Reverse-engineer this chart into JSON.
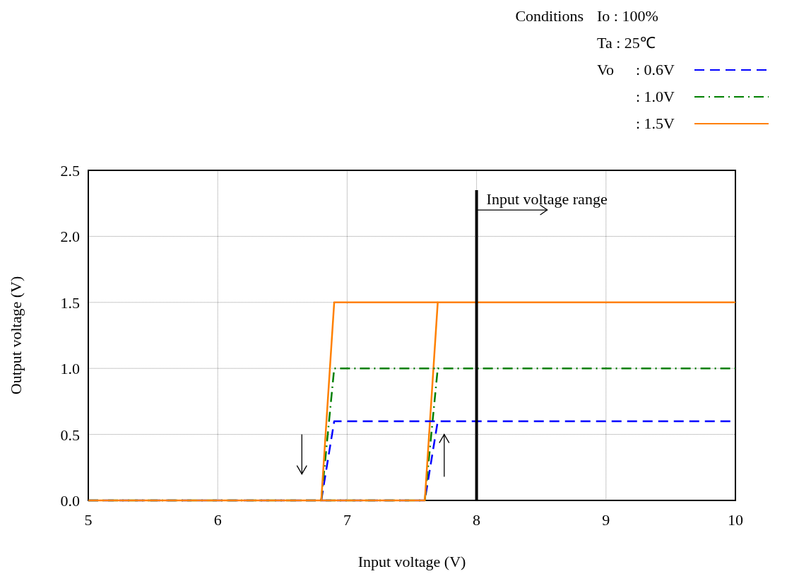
{
  "chart_data": {
    "type": "line",
    "xlabel": "Input voltage (V)",
    "ylabel": "Output voltage (V)",
    "legend_title": "Conditions",
    "xlim": [
      5,
      10
    ],
    "xticks": [
      5,
      6,
      7,
      8,
      9,
      10
    ],
    "ylim": [
      0,
      2.5
    ],
    "yticks": [
      {
        "value": 0,
        "label": "0.0"
      },
      {
        "value": 0.5,
        "label": "0.5"
      },
      {
        "value": 1,
        "label": "1.0"
      },
      {
        "value": 1.5,
        "label": "1.5"
      },
      {
        "value": 2,
        "label": "2.0"
      },
      {
        "value": 2.5,
        "label": "2.5"
      }
    ],
    "grid": true,
    "legend": "top right",
    "series": [
      {
        "name": ": 0.6V",
        "color": "#0000ff",
        "line_style": "dashed",
        "x": [
          5,
          7.6,
          7.7,
          10
        ],
        "values": [
          0,
          0,
          0.6,
          0.6
        ]
      },
      {
        "name": ": 1.0V",
        "color": "#008000",
        "line_style": "dashdot",
        "x": [
          5,
          7.6,
          7.7,
          10
        ],
        "values": [
          0,
          0,
          1,
          1
        ]
      },
      {
        "name": ": 1.5V",
        "color": "#ff8000",
        "line_style": "solid",
        "x": [
          5,
          7.6,
          7.7,
          10
        ],
        "values": [
          0,
          0,
          1.5,
          1.5
        ]
      },
      {
        "color": "#0000ff",
        "line_style": "dashed",
        "x": [
          6.8,
          6.9,
          7.7
        ],
        "values": [
          0,
          0.6,
          0.6
        ]
      },
      {
        "color": "#008000",
        "line_style": "dashdot",
        "x": [
          6.8,
          6.9,
          7.7
        ],
        "values": [
          0,
          1,
          1
        ]
      },
      {
        "color": "#ff8000",
        "line_style": "solid",
        "x": [
          6.8,
          6.9,
          7.7
        ],
        "values": [
          0,
          1.5,
          1.5
        ]
      }
    ],
    "ref_lines": [
      {
        "axis": "x",
        "value": 8,
        "label": "Input voltage range",
        "color": "#000000"
      }
    ],
    "annotations": [
      "Io  :  100%",
      "Ta  :  25℃",
      "Vo"
    ]
  }
}
